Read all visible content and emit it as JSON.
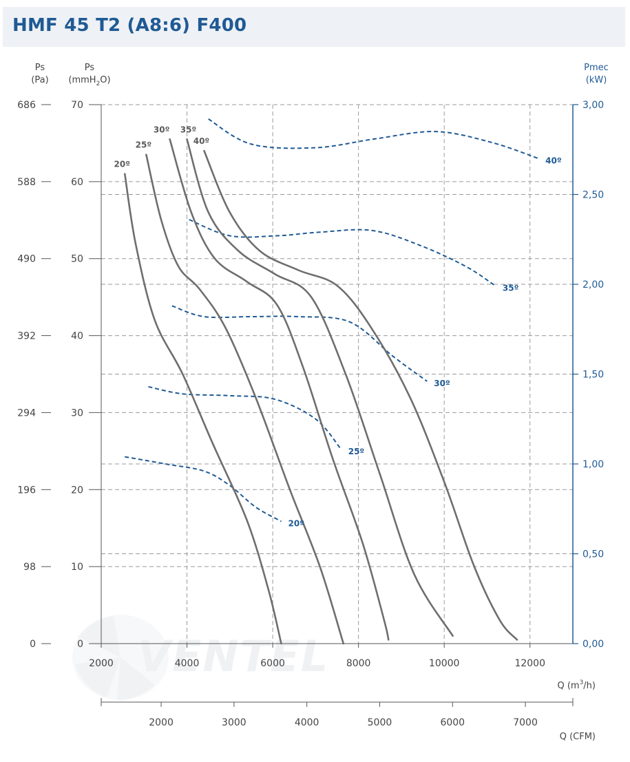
{
  "header": {
    "title": "HMF 45 T2 (A8:6) F400"
  },
  "watermark": {
    "text": "VENTEL"
  },
  "axes": {
    "pa_label_line1": "Ps",
    "pa_label_line2": "(Pa)",
    "mm_label_line1": "Ps",
    "mm_label_line2_pre": "(mmH",
    "mm_label_line2_sub": "2",
    "mm_label_line2_post": "O)",
    "right_label_line1": "Pmec",
    "right_label_line2": "(kW)",
    "x_label_pre": "Q (m",
    "x_label_sup": "3",
    "x_label_post": "/h)",
    "cfm_label": "Q (CFM)"
  },
  "chart_data": {
    "type": "line",
    "x_unit": "m3/h",
    "xlim": [
      2000,
      13000
    ],
    "ylim_mmH2O": [
      0,
      70
    ],
    "ylim_kW": [
      0,
      3
    ],
    "grid": true,
    "x_ticks": [
      2000,
      4000,
      6000,
      8000,
      10000,
      12000
    ],
    "x_tick_labels": [
      "2000",
      "4000",
      "6000",
      "8000",
      "10000",
      "12000"
    ],
    "y_ticks_mmH2O": [
      0,
      10,
      20,
      30,
      40,
      50,
      60,
      70
    ],
    "y_tick_labels_mmH2O": [
      "0",
      "10",
      "20",
      "30",
      "40",
      "50",
      "60",
      "70"
    ],
    "y_ticks_Pa": [
      0,
      98,
      196,
      294,
      392,
      490,
      588,
      686
    ],
    "y_tick_labels_Pa": [
      "0",
      "98",
      "196",
      "294",
      "392",
      "490",
      "588",
      "686"
    ],
    "y_ticks_kW": [
      0,
      0.5,
      1,
      1.5,
      2,
      2.5,
      3
    ],
    "y_tick_labels_kW": [
      "0,00",
      "0,50",
      "1,00",
      "1,50",
      "2,00",
      "2,50",
      "3,00"
    ],
    "cfm_ticks": [
      2000,
      3000,
      4000,
      5000,
      6000,
      7000
    ],
    "cfm_tick_labels": [
      "2000",
      "3000",
      "4000",
      "5000",
      "6000",
      "7000"
    ],
    "pressure_series": [
      {
        "name": "20º",
        "points": [
          [
            2550,
            61
          ],
          [
            2800,
            52
          ],
          [
            3250,
            42
          ],
          [
            3900,
            35
          ],
          [
            4600,
            26
          ],
          [
            5400,
            16
          ],
          [
            5900,
            7
          ],
          [
            6200,
            0
          ]
        ]
      },
      {
        "name": "25º",
        "points": [
          [
            3050,
            63.5
          ],
          [
            3400,
            55
          ],
          [
            3800,
            49
          ],
          [
            4300,
            46
          ],
          [
            4900,
            41
          ],
          [
            5600,
            32
          ],
          [
            6400,
            20
          ],
          [
            7100,
            10
          ],
          [
            7650,
            0
          ]
        ]
      },
      {
        "name": "30º",
        "points": [
          [
            3600,
            65.5
          ],
          [
            4100,
            56
          ],
          [
            4650,
            50
          ],
          [
            5400,
            47
          ],
          [
            6100,
            44
          ],
          [
            6700,
            36
          ],
          [
            7400,
            24
          ],
          [
            8100,
            13
          ],
          [
            8600,
            3
          ],
          [
            8700,
            0.5
          ]
        ]
      },
      {
        "name": "35º",
        "points": [
          [
            4000,
            65.5
          ],
          [
            4500,
            56
          ],
          [
            5200,
            51
          ],
          [
            6050,
            48
          ],
          [
            6900,
            45
          ],
          [
            7700,
            35
          ],
          [
            8500,
            22
          ],
          [
            9300,
            9
          ],
          [
            10200,
            1
          ]
        ]
      },
      {
        "name": "40º",
        "points": [
          [
            4400,
            64
          ],
          [
            5000,
            56
          ],
          [
            5700,
            51
          ],
          [
            6600,
            48.5
          ],
          [
            7500,
            46.5
          ],
          [
            8300,
            41
          ],
          [
            9200,
            32
          ],
          [
            10000,
            21
          ],
          [
            10700,
            10
          ],
          [
            11300,
            3
          ],
          [
            11700,
            0.5
          ]
        ]
      }
    ],
    "power_series": [
      {
        "name": "20º",
        "points": [
          [
            2550,
            1.04
          ],
          [
            3500,
            1.0
          ],
          [
            4400,
            0.96
          ],
          [
            5000,
            0.88
          ],
          [
            5600,
            0.76
          ],
          [
            6200,
            0.68
          ]
        ]
      },
      {
        "name": "25º",
        "points": [
          [
            3100,
            1.43
          ],
          [
            3900,
            1.39
          ],
          [
            5000,
            1.38
          ],
          [
            6050,
            1.36
          ],
          [
            7000,
            1.25
          ],
          [
            7600,
            1.08
          ]
        ]
      },
      {
        "name": "30º",
        "points": [
          [
            3650,
            1.88
          ],
          [
            4400,
            1.82
          ],
          [
            5500,
            1.82
          ],
          [
            6600,
            1.82
          ],
          [
            7800,
            1.79
          ],
          [
            8800,
            1.6
          ],
          [
            9600,
            1.46
          ]
        ]
      },
      {
        "name": "35º",
        "points": [
          [
            4050,
            2.36
          ],
          [
            5000,
            2.27
          ],
          [
            6100,
            2.27
          ],
          [
            7100,
            2.29
          ],
          [
            8300,
            2.3
          ],
          [
            9400,
            2.22
          ],
          [
            10500,
            2.1
          ],
          [
            11200,
            1.99
          ]
        ]
      },
      {
        "name": "40º",
        "points": [
          [
            4500,
            2.92
          ],
          [
            5500,
            2.78
          ],
          [
            7000,
            2.76
          ],
          [
            8400,
            2.81
          ],
          [
            9800,
            2.85
          ],
          [
            11100,
            2.79
          ],
          [
            12200,
            2.7
          ]
        ]
      }
    ]
  }
}
